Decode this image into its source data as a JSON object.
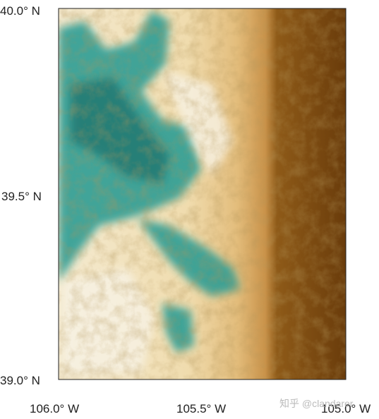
{
  "map": {
    "lat_labels": [
      "40.0° N",
      "39.5° N",
      "39.0° N"
    ],
    "lon_labels": [
      "106.0° W",
      "105.5° W",
      "105.0° W"
    ],
    "watermark": "知乎 @clandarer"
  }
}
